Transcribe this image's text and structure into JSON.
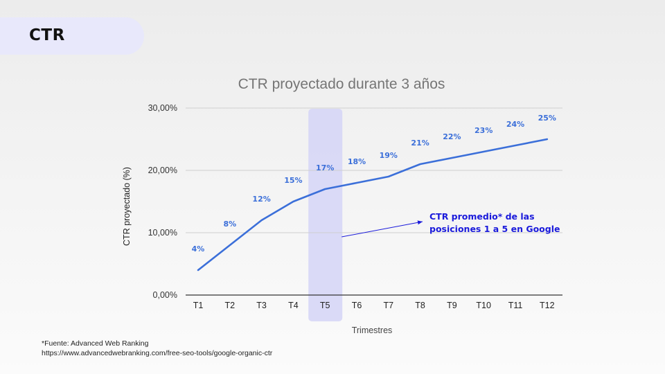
{
  "slide": {
    "title": "CTR"
  },
  "footnote": {
    "source": "*Fuente: Advanced Web Ranking",
    "url": "https://www.advancedwebranking.com/free-seo-tools/google-organic-ctr"
  },
  "colors": {
    "line": "#3b6fd9",
    "data_label": "#3b6fd9",
    "annotation": "#1a1adb",
    "highlight": "#d5d5f7",
    "title_pill": "#e8e8fb"
  },
  "chart_data": {
    "type": "line",
    "title": "CTR proyectado durante 3 años",
    "xlabel": "Trimestres",
    "ylabel": "CTR proyectado (%)",
    "categories": [
      "T1",
      "T2",
      "T3",
      "T4",
      "T5",
      "T6",
      "T7",
      "T8",
      "T9",
      "T10",
      "T11",
      "T12"
    ],
    "series": [
      {
        "values": [
          4,
          8,
          12,
          15,
          17,
          18,
          19,
          21,
          22,
          23,
          24,
          25
        ]
      }
    ],
    "data_labels": [
      "4%",
      "8%",
      "12%",
      "15%",
      "17%",
      "18%",
      "19%",
      "21%",
      "22%",
      "23%",
      "24%",
      "25%"
    ],
    "y_ticks": [
      0,
      10,
      20,
      30
    ],
    "y_tick_labels": [
      "0,00%",
      "10,00%",
      "20,00%",
      "30,00%"
    ],
    "ylim": [
      0,
      30
    ],
    "grid": true,
    "highlight_category": "T5",
    "annotation": {
      "lines": [
        "CTR promedio* de las",
        "posiciones 1 a 5 en Google"
      ],
      "target_category": "T5"
    }
  }
}
